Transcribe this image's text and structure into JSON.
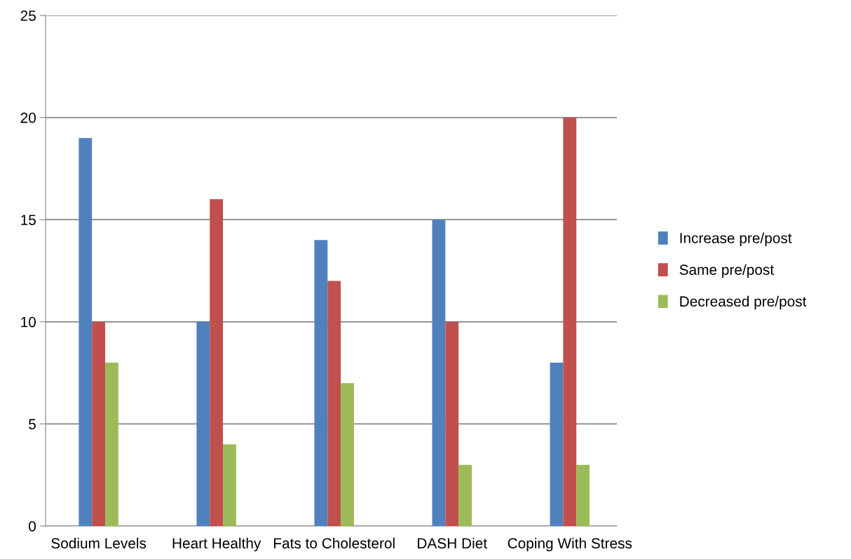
{
  "chart_data": {
    "type": "bar",
    "categories": [
      "Sodium Levels",
      "Heart Healthy",
      "Fats to Cholesterol",
      "DASH Diet",
      "Coping With Stress"
    ],
    "series": [
      {
        "name": "Increase pre/post",
        "color": "#4f81bd",
        "values": [
          19,
          10,
          14,
          15,
          8
        ]
      },
      {
        "name": "Same pre/post",
        "color": "#c0504d",
        "values": [
          10,
          16,
          12,
          10,
          20
        ]
      },
      {
        "name": "Decreased pre/post",
        "color": "#9bbb59",
        "values": [
          8,
          4,
          7,
          3,
          3
        ]
      }
    ],
    "ylim": [
      0,
      25
    ],
    "yticks": [
      0,
      5,
      10,
      15,
      20,
      25
    ],
    "grid": "y",
    "legend": "right"
  }
}
